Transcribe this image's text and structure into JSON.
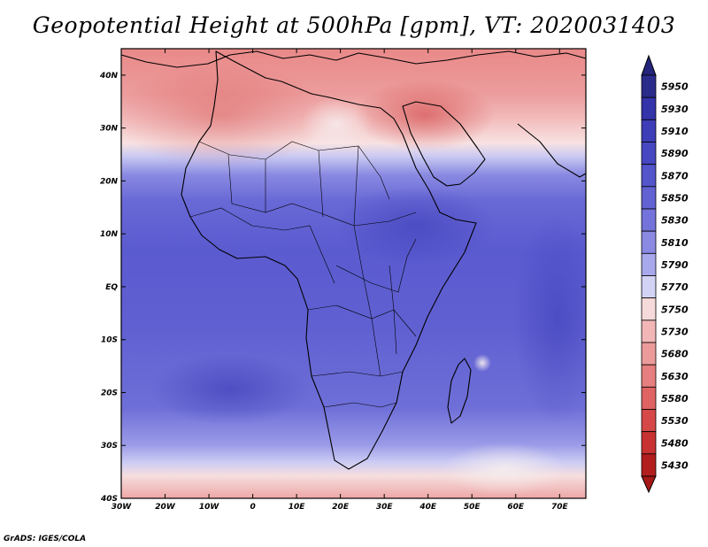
{
  "title": "Geopotential Height at 500hPa [gpm], VT: 2020031403",
  "credit": "GrADS: IGES/COLA",
  "map": {
    "lon_range": [
      -30,
      76
    ],
    "lat_range": [
      -40,
      45
    ],
    "x_ticks": [
      {
        "v": -30,
        "label": "30W"
      },
      {
        "v": -20,
        "label": "20W"
      },
      {
        "v": -10,
        "label": "10W"
      },
      {
        "v": 0,
        "label": "0"
      },
      {
        "v": 10,
        "label": "10E"
      },
      {
        "v": 20,
        "label": "20E"
      },
      {
        "v": 30,
        "label": "30E"
      },
      {
        "v": 40,
        "label": "40E"
      },
      {
        "v": 50,
        "label": "50E"
      },
      {
        "v": 60,
        "label": "60E"
      },
      {
        "v": 70,
        "label": "70E"
      }
    ],
    "y_ticks": [
      {
        "v": 40,
        "label": "40N"
      },
      {
        "v": 30,
        "label": "30N"
      },
      {
        "v": 20,
        "label": "20N"
      },
      {
        "v": 10,
        "label": "10N"
      },
      {
        "v": 0,
        "label": "EQ"
      },
      {
        "v": -10,
        "label": "10S"
      },
      {
        "v": -20,
        "label": "20S"
      },
      {
        "v": -30,
        "label": "30S"
      },
      {
        "v": -40,
        "label": "40S"
      }
    ]
  },
  "colorbar": {
    "levels": [
      "5950",
      "5930",
      "5910",
      "5890",
      "5870",
      "5850",
      "5830",
      "5810",
      "5790",
      "5770",
      "5750",
      "5730",
      "5680",
      "5630",
      "5580",
      "5530",
      "5480",
      "5430"
    ],
    "colors": [
      "#2b2b8c",
      "#3333aa",
      "#3d3db8",
      "#4747c2",
      "#5454cb",
      "#6262d3",
      "#7373db",
      "#8a8ae3",
      "#a8a8ec",
      "#d2d2f5",
      "#f6d9d9",
      "#f2b6b6",
      "#ec9b9b",
      "#e67f7f",
      "#df6363",
      "#d64848",
      "#c83232",
      "#b21e1e"
    ]
  }
}
